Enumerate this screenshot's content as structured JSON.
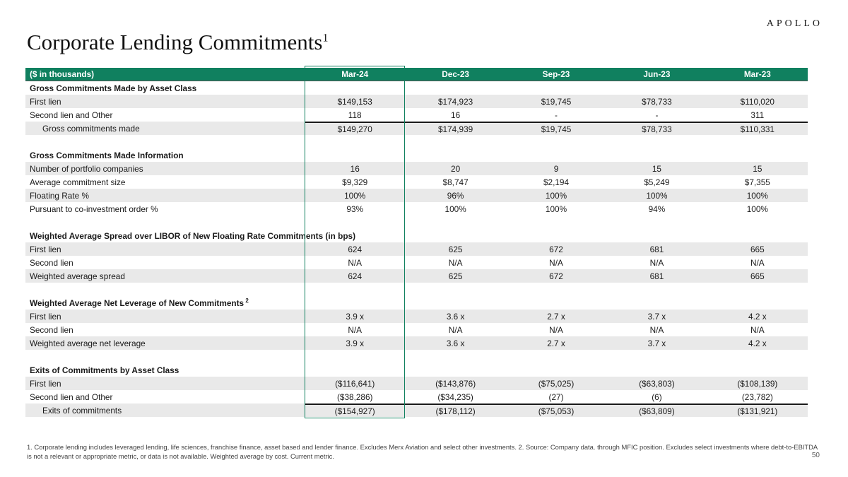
{
  "logo": "APOLLO",
  "title": {
    "text": "Corporate Lending Commitments",
    "sup": "1"
  },
  "page_number": "50",
  "footnote": "1. Corporate lending includes leveraged lending, life sciences, franchise finance, asset based and lender finance. Excludes Merx Aviation and select other investments. 2. Source: Company data. through MFIC position. Excludes select investments where debt-to-EBITDA is not a relevant or appropriate metric, or data is not available.  Weighted average by cost. Current metric.",
  "colors": {
    "header_green": "#10805F",
    "highlight_border": "#10805F",
    "row_stripe_gray": "#E9E9E9",
    "total_border_black": "#1A1A1A"
  },
  "table": {
    "unit_label": "($ in thousands)",
    "columns": [
      "Mar-24",
      "Dec-23",
      "Sep-23",
      "Jun-23",
      "Mar-23"
    ],
    "highlighted_column": "Mar-24",
    "sections": [
      {
        "header": "Gross Commitments Made by Asset Class",
        "rows": [
          {
            "label": "First lien",
            "values": [
              "$149,153",
              "$174,923",
              "$19,745",
              "$78,733",
              "$110,020"
            ]
          },
          {
            "label": "Second lien and Other",
            "values": [
              "118",
              "16",
              "-",
              "-",
              "311"
            ]
          },
          {
            "label": "Gross commitments made",
            "total": true,
            "values": [
              "$149,270",
              "$174,939",
              "$19,745",
              "$78,733",
              "$110,331"
            ]
          }
        ]
      },
      {
        "header": "Gross Commitments Made Information",
        "rows": [
          {
            "label": "Number of portfolio companies",
            "values": [
              "16",
              "20",
              "9",
              "15",
              "15"
            ]
          },
          {
            "label": "Average commitment size",
            "values": [
              "$9,329",
              "$8,747",
              "$2,194",
              "$5,249",
              "$7,355"
            ]
          },
          {
            "label": "Floating Rate %",
            "values": [
              "100%",
              "96%",
              "100%",
              "100%",
              "100%"
            ]
          },
          {
            "label": "Pursuant to co-investment order %",
            "values": [
              "93%",
              "100%",
              "100%",
              "94%",
              "100%"
            ]
          }
        ]
      },
      {
        "header": "Weighted Average Spread over LIBOR of New Floating Rate Commitments (in bps)",
        "rows": [
          {
            "label": "First lien",
            "values": [
              "624",
              "625",
              "672",
              "681",
              "665"
            ]
          },
          {
            "label": "Second lien",
            "values": [
              "N/A",
              "N/A",
              "N/A",
              "N/A",
              "N/A"
            ]
          },
          {
            "label": "Weighted average spread",
            "values": [
              "624",
              "625",
              "672",
              "681",
              "665"
            ]
          }
        ]
      },
      {
        "header": "Weighted Average Net Leverage of New Commitments",
        "header_sup": "2",
        "rows": [
          {
            "label": "First lien",
            "values": [
              "3.9 x",
              "3.6 x",
              "2.7 x",
              "3.7 x",
              "4.2 x"
            ]
          },
          {
            "label": "Second lien",
            "values": [
              "N/A",
              "N/A",
              "N/A",
              "N/A",
              "N/A"
            ]
          },
          {
            "label": "Weighted average net leverage",
            "values": [
              "3.9 x",
              "3.6 x",
              "2.7 x",
              "3.7 x",
              "4.2 x"
            ]
          }
        ]
      },
      {
        "header": "Exits of Commitments by Asset Class",
        "rows": [
          {
            "label": "First lien",
            "values": [
              "($116,641)",
              "($143,876)",
              "($75,025)",
              "($63,803)",
              "($108,139)"
            ]
          },
          {
            "label": "Second lien and Other",
            "values": [
              "($38,286)",
              "($34,235)",
              "(27)",
              "(6)",
              "(23,782)"
            ]
          },
          {
            "label": "Exits of commitments",
            "total": true,
            "values": [
              "($154,927)",
              "($178,112)",
              "($75,053)",
              "($63,809)",
              "($131,921)"
            ]
          }
        ]
      }
    ]
  }
}
